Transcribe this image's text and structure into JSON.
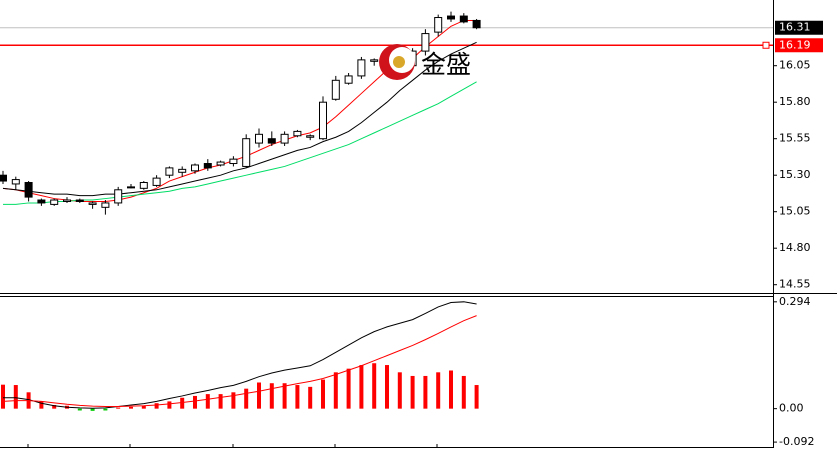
{
  "chart_data": [
    {
      "type": "candlestick",
      "ylim": [
        14.5,
        16.5
      ],
      "yticks": [
        {
          "value": 16.05,
          "label": "16.05"
        },
        {
          "value": 15.8,
          "label": "15.80"
        },
        {
          "value": 15.55,
          "label": "15.55"
        },
        {
          "value": 15.3,
          "label": "15.30"
        },
        {
          "value": 15.05,
          "label": "15.05"
        },
        {
          "value": 14.8,
          "label": "14.80"
        },
        {
          "value": 14.55,
          "label": "14.55"
        }
      ],
      "price_marker": 16.31,
      "hline": 16.19,
      "hline_color": "#ff0000",
      "up_color": "#ffffff",
      "down_color": "#000000",
      "watermark": "金盛",
      "open": [
        15.3,
        15.24,
        15.25,
        15.13,
        15.1,
        15.12,
        15.13,
        15.1,
        15.08,
        15.11,
        15.22,
        15.21,
        15.23,
        15.3,
        15.32,
        15.33,
        15.38,
        15.37,
        15.38,
        15.36,
        15.52,
        15.55,
        15.52,
        15.57,
        15.56,
        15.55,
        15.82,
        15.93,
        15.98,
        16.08,
        16.06,
        16.02,
        16.05,
        16.15,
        16.28,
        16.39,
        16.39,
        16.36
      ],
      "high": [
        15.33,
        15.29,
        15.26,
        15.14,
        15.14,
        15.15,
        15.14,
        15.12,
        15.13,
        15.22,
        15.24,
        15.26,
        15.3,
        15.36,
        15.36,
        15.38,
        15.41,
        15.4,
        15.43,
        15.58,
        15.62,
        15.6,
        15.6,
        15.61,
        15.58,
        15.84,
        15.98,
        16.0,
        16.11,
        16.1,
        16.14,
        16.12,
        16.17,
        16.3,
        16.4,
        16.42,
        16.41,
        16.37
      ],
      "low": [
        15.24,
        15.2,
        15.12,
        15.09,
        15.09,
        15.11,
        15.11,
        15.07,
        15.03,
        15.09,
        15.21,
        15.2,
        15.22,
        15.28,
        15.29,
        15.31,
        15.33,
        15.36,
        15.36,
        15.35,
        15.49,
        15.5,
        15.5,
        15.56,
        15.54,
        15.54,
        15.81,
        15.92,
        15.96,
        16.05,
        15.99,
        16.0,
        16.02,
        16.12,
        16.25,
        16.35,
        16.34,
        16.3
      ],
      "close": [
        15.26,
        15.27,
        15.15,
        15.11,
        15.13,
        15.13,
        15.12,
        15.11,
        15.11,
        15.2,
        15.22,
        15.25,
        15.28,
        15.35,
        15.34,
        15.37,
        15.35,
        15.39,
        15.41,
        15.55,
        15.58,
        15.52,
        15.58,
        15.6,
        15.57,
        15.8,
        15.95,
        15.98,
        16.09,
        16.09,
        16.12,
        16.1,
        16.15,
        16.27,
        16.38,
        16.37,
        16.35,
        16.31
      ],
      "series": [
        {
          "color": "#ff0000",
          "values": [
            15.21,
            15.2,
            15.18,
            15.16,
            15.14,
            15.13,
            15.12,
            15.12,
            15.12,
            15.13,
            15.15,
            15.18,
            15.21,
            15.26,
            15.29,
            15.32,
            15.35,
            15.37,
            15.4,
            15.43,
            15.47,
            15.51,
            15.54,
            15.57,
            15.59,
            15.63,
            15.7,
            15.78,
            15.86,
            15.94,
            16.02,
            16.06,
            16.1,
            16.18,
            16.25,
            16.32,
            16.36,
            16.36
          ]
        },
        {
          "color": "#000000",
          "values": [
            15.21,
            15.2,
            15.19,
            15.18,
            15.17,
            15.17,
            15.16,
            15.16,
            15.17,
            15.17,
            15.18,
            15.19,
            15.2,
            15.22,
            15.24,
            15.26,
            15.28,
            15.3,
            15.33,
            15.35,
            15.38,
            15.41,
            15.44,
            15.47,
            15.49,
            15.53,
            15.56,
            15.6,
            15.66,
            15.73,
            15.8,
            15.88,
            15.95,
            16.02,
            16.08,
            16.13,
            16.17,
            16.21
          ]
        },
        {
          "color": "#00dd66",
          "values": [
            15.1,
            15.1,
            15.11,
            15.11,
            15.12,
            15.12,
            15.13,
            15.13,
            15.14,
            15.15,
            15.16,
            15.17,
            15.18,
            15.19,
            15.21,
            15.22,
            15.24,
            15.26,
            15.28,
            15.3,
            15.32,
            15.34,
            15.36,
            15.39,
            15.42,
            15.45,
            15.48,
            15.51,
            15.55,
            15.59,
            15.63,
            15.67,
            15.71,
            15.75,
            15.79,
            15.84,
            15.89,
            15.94
          ]
        }
      ]
    },
    {
      "type": "macd",
      "ylim": [
        -0.1,
        0.31
      ],
      "yticks": [
        0.294,
        {
          "value": 0,
          "label": "0.00"
        },
        -0.092
      ],
      "bar_color": "#ff0000",
      "negative_color": "#00cc00",
      "bars": [
        0.066,
        0.065,
        0.045,
        0.02,
        0.01,
        0.008,
        -0.005,
        -0.006,
        -0.005,
        0.003,
        0.005,
        0.008,
        0.015,
        0.02,
        0.03,
        0.035,
        0.04,
        0.04,
        0.045,
        0.055,
        0.072,
        0.07,
        0.07,
        0.065,
        0.06,
        0.08,
        0.1,
        0.11,
        0.12,
        0.125,
        0.12,
        0.1,
        0.09,
        0.09,
        0.1,
        0.105,
        0.09,
        0.065
      ],
      "series": [
        {
          "color": "#000000",
          "values": [
            0.03,
            0.03,
            0.025,
            0.015,
            0.008,
            0.004,
            0.002,
            0.001,
            0.002,
            0.006,
            0.01,
            0.014,
            0.02,
            0.028,
            0.035,
            0.043,
            0.05,
            0.058,
            0.064,
            0.075,
            0.088,
            0.098,
            0.106,
            0.112,
            0.118,
            0.135,
            0.155,
            0.175,
            0.195,
            0.212,
            0.225,
            0.235,
            0.245,
            0.262,
            0.28,
            0.292,
            0.294,
            0.288
          ]
        },
        {
          "color": "#ff0000",
          "values": [
            0.02,
            0.022,
            0.022,
            0.02,
            0.016,
            0.012,
            0.009,
            0.007,
            0.006,
            0.006,
            0.007,
            0.008,
            0.01,
            0.013,
            0.017,
            0.021,
            0.026,
            0.031,
            0.036,
            0.042,
            0.048,
            0.055,
            0.062,
            0.069,
            0.075,
            0.083,
            0.094,
            0.106,
            0.118,
            0.132,
            0.146,
            0.16,
            0.174,
            0.19,
            0.207,
            0.225,
            0.242,
            0.256
          ]
        }
      ]
    }
  ]
}
